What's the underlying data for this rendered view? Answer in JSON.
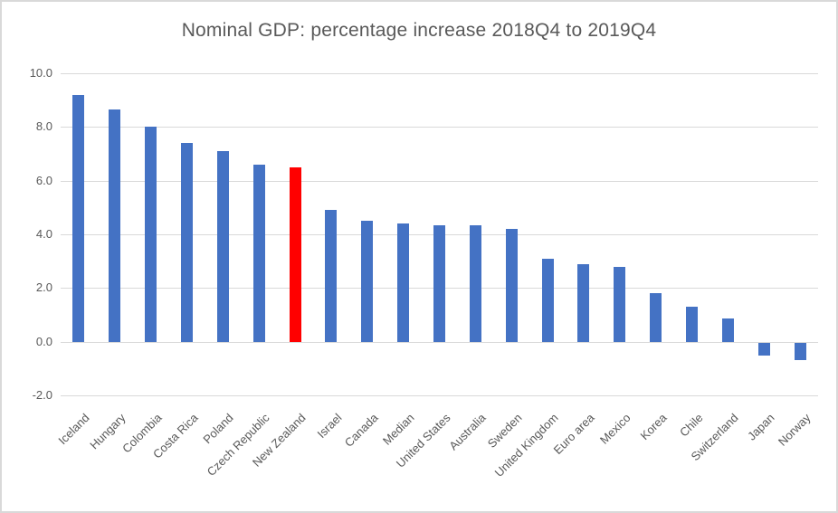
{
  "chart_data": {
    "type": "bar",
    "title": "Nominal GDP: percentage increase 2018Q4 to 2019Q4",
    "categories": [
      "Iceland",
      "Hungary",
      "Colombia",
      "Costa Rica",
      "Poland",
      "Czech Republic",
      "New Zealand",
      "Israel",
      "Canada",
      "Median",
      "United States",
      "Australia",
      "Sweden",
      "United Kingdom",
      "Euro area",
      "Mexico",
      "Korea",
      "Chile",
      "Switzerland",
      "Japan",
      "Norway"
    ],
    "values": [
      9.2,
      8.65,
      8.0,
      7.4,
      7.1,
      6.6,
      6.5,
      4.9,
      4.5,
      4.4,
      4.35,
      4.35,
      4.2,
      3.1,
      2.9,
      2.8,
      1.8,
      1.3,
      0.85,
      -0.5,
      -0.65
    ],
    "highlight_category": "New Zealand",
    "yticks": [
      10,
      8,
      6,
      4,
      2,
      0,
      -2
    ],
    "ytick_labels": [
      "10.0",
      "8.0",
      "6.0",
      "4.0",
      "2.0",
      "0.0",
      "-2.0"
    ],
    "ylim": [
      -2,
      10
    ],
    "grid": true,
    "legend": "none",
    "colors": {
      "bar": "#4472c4",
      "highlight": "#ff0000",
      "gridline": "#d9d9d9",
      "text": "#595959",
      "border": "#d9d9d9",
      "background": "#ffffff"
    }
  }
}
